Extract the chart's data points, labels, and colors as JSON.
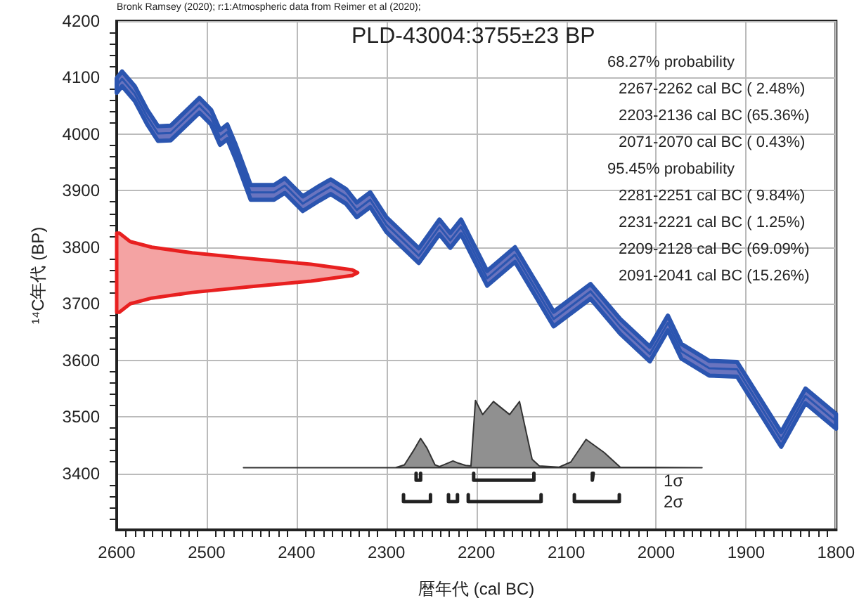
{
  "chart_data": {
    "type": "line",
    "title": "PLD-43004:3755±23 BP",
    "xlabel": "暦年代 (cal BC)",
    "ylabel": "¹⁴C年代 (BP)",
    "annotations": [
      "Bronk Ramsey (2020); r:1:Atmospheric data from Reimer et al (2020);",
      "68.27% probability",
      "2267-2262 cal BC ( 2.48%)",
      "2203-2136 cal BC (65.36%)",
      "2071-2070 cal BC ( 0.43%)",
      "95.45% probability",
      "2281-2251 cal BC ( 9.84%)",
      "2231-2221 cal BC ( 1.25%)",
      "2209-2128 cal BC (69.09%)",
      "2091-2041 cal BC (15.26%)",
      "1σ",
      "2σ"
    ],
    "xlim": [
      2600,
      1800
    ],
    "xticks": [
      2600,
      2500,
      2400,
      2300,
      2200,
      2100,
      2000,
      1900,
      1800
    ],
    "ylim": [
      3300,
      4200
    ],
    "yticks": [
      3400,
      3500,
      3600,
      3700,
      3800,
      3900,
      4000,
      4100,
      4200
    ],
    "grid": true,
    "marker": "none",
    "series": [
      {
        "color": "#2b55b0",
        "x": [
          2600,
          2594,
          2580,
          2566,
          2554,
          2540,
          2525,
          2508,
          2495,
          2485,
          2477,
          2468,
          2451,
          2425,
          2413,
          2393,
          2375,
          2362,
          2345,
          2333,
          2318,
          2300,
          2264,
          2241,
          2229,
          2217,
          2188,
          2157,
          2114,
          2073,
          2040,
          2007,
          1987,
          1972,
          1941,
          1910,
          1861,
          1834,
          1800
        ],
        "values": [
          4086,
          4098,
          4072,
          4030,
          4001,
          4002,
          4025,
          4051,
          4030,
          3994,
          4004,
          3970,
          3897,
          3897,
          3909,
          3877,
          3895,
          3907,
          3890,
          3866,
          3884,
          3840,
          3785,
          3836,
          3812,
          3836,
          3745,
          3787,
          3673,
          3722,
          3660,
          3611,
          3666,
          3616,
          3586,
          3584,
          3460,
          3537,
          3492
        ],
        "lower": [
          4073,
          4085,
          4059,
          4017,
          3988,
          3989,
          4012,
          4038,
          4017,
          3981,
          3991,
          3957,
          3884,
          3884,
          3896,
          3864,
          3882,
          3894,
          3877,
          3853,
          3871,
          3827,
          3772,
          3823,
          3799,
          3823,
          3732,
          3774,
          3660,
          3709,
          3647,
          3598,
          3653,
          3603,
          3573,
          3571,
          3447,
          3524,
          3479
        ],
        "upper": [
          4099,
          4111,
          4085,
          4043,
          4014,
          4015,
          4038,
          4064,
          4043,
          4007,
          4017,
          3983,
          3910,
          3910,
          3922,
          3890,
          3908,
          3920,
          3903,
          3879,
          3897,
          3853,
          3798,
          3849,
          3825,
          3849,
          3758,
          3800,
          3686,
          3735,
          3673,
          3624,
          3679,
          3629,
          3599,
          3597,
          3473,
          3550,
          3505
        ]
      },
      {
        "type": "area",
        "color": "#e82020",
        "x": [
          2597,
          2585,
          2561,
          2516,
          2452,
          2384,
          2338,
          2332,
          2338,
          2384,
          2452,
          2516,
          2561,
          2585,
          2597
        ],
        "values": [
          3825,
          3810,
          3800,
          3790,
          3780,
          3770,
          3760,
          3755,
          3750,
          3740,
          3730,
          3720,
          3710,
          3700,
          3685
        ]
      },
      {
        "type": "area",
        "color": "#909090",
        "x": [
          2459,
          2290,
          2280,
          2270,
          2262,
          2255,
          2246,
          2241,
          2232,
          2226,
          2220,
          2212,
          2206,
          2201,
          2193,
          2181,
          2163,
          2152,
          2138,
          2130,
          2108,
          2095,
          2078,
          2058,
          2040,
          1949
        ],
        "values": [
          3410,
          3410,
          3415,
          3440,
          3462,
          3445,
          3415,
          3412,
          3418,
          3422,
          3418,
          3414,
          3413,
          3529,
          3504,
          3527,
          3504,
          3527,
          3425,
          3413,
          3411,
          3420,
          3460,
          3437,
          3411,
          3410
        ]
      },
      {
        "color": "#222222",
        "x": [
          2267,
          2267,
          2262,
          2262
        ],
        "values": [
          3400,
          3388,
          3388,
          3400
        ]
      },
      {
        "color": "#222222",
        "x": [
          2203,
          2203,
          2136,
          2136
        ],
        "values": [
          3400,
          3388,
          3388,
          3400
        ]
      },
      {
        "color": "#222222",
        "x": [
          2071,
          2071,
          2070,
          2070
        ],
        "values": [
          3400,
          3388,
          3388,
          3400
        ]
      },
      {
        "color": "#222222",
        "x": [
          2281,
          2281,
          2251,
          2251
        ],
        "values": [
          3362,
          3350,
          3350,
          3362
        ]
      },
      {
        "color": "#222222",
        "x": [
          2231,
          2231,
          2221,
          2221
        ],
        "values": [
          3362,
          3350,
          3350,
          3362
        ]
      },
      {
        "color": "#222222",
        "x": [
          2209,
          2209,
          2128,
          2128
        ],
        "values": [
          3362,
          3350,
          3350,
          3362
        ]
      },
      {
        "color": "#222222",
        "x": [
          2091,
          2091,
          2041,
          2041
        ],
        "values": [
          3362,
          3350,
          3350,
          3362
        ]
      }
    ]
  }
}
